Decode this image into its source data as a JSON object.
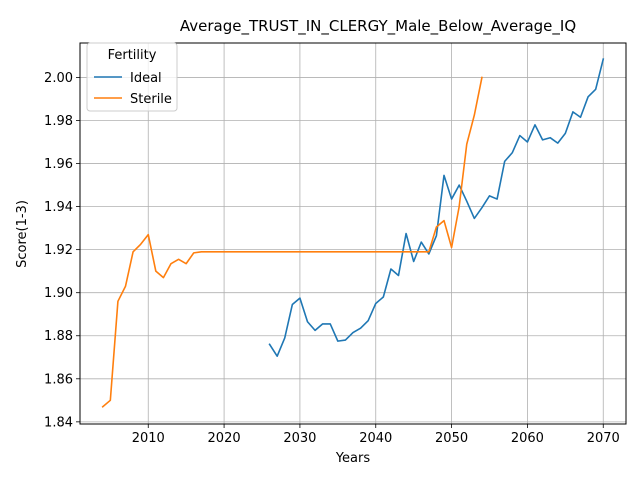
{
  "chart_data": {
    "type": "line",
    "title": "Average_TRUST_IN_CLERGY_Male_Below_Average_IQ",
    "xlabel": "Years",
    "ylabel": "Score(1-3)",
    "xlim": [
      2001,
      2073
    ],
    "ylim": [
      1.839,
      2.016
    ],
    "xticks": [
      2010,
      2020,
      2030,
      2040,
      2050,
      2060,
      2070
    ],
    "yticks": [
      1.84,
      1.86,
      1.88,
      1.9,
      1.92,
      1.94,
      1.96,
      1.98,
      2.0
    ],
    "ytick_labels": [
      "1.84",
      "1.86",
      "1.88",
      "1.90",
      "1.92",
      "1.94",
      "1.96",
      "1.98",
      "2.00"
    ],
    "grid": true,
    "legend": {
      "title": "Fertility",
      "position": "top-left"
    },
    "series": [
      {
        "name": "Ideal",
        "color": "#1f77b4",
        "x": [
          2026,
          2027,
          2028,
          2029,
          2030,
          2031,
          2032,
          2033,
          2034,
          2035,
          2036,
          2037,
          2038,
          2039,
          2040,
          2041,
          2042,
          2043,
          2044,
          2045,
          2046,
          2047,
          2048,
          2049,
          2050,
          2051,
          2052,
          2053,
          2054,
          2055,
          2056,
          2057,
          2058,
          2059,
          2060,
          2061,
          2062,
          2063,
          2064,
          2065,
          2066,
          2067,
          2068,
          2069,
          2070
        ],
        "y": [
          1.876,
          1.8705,
          1.879,
          1.8945,
          1.8975,
          1.8865,
          1.8825,
          1.8855,
          1.8855,
          1.8775,
          1.878,
          1.8815,
          1.8835,
          1.887,
          1.895,
          1.898,
          1.911,
          1.908,
          1.9275,
          1.9145,
          1.9235,
          1.918,
          1.9265,
          1.9545,
          1.9435,
          1.95,
          1.9425,
          1.9345,
          1.9395,
          1.945,
          1.9435,
          1.961,
          1.965,
          1.973,
          1.97,
          1.978,
          1.971,
          1.972,
          1.9695,
          1.974,
          1.984,
          1.9815,
          1.991,
          1.9945,
          2.0085
        ]
      },
      {
        "name": "Sterile",
        "color": "#ff7f0e",
        "x": [
          2004,
          2005,
          2006,
          2007,
          2008,
          2009,
          2010,
          2011,
          2012,
          2013,
          2014,
          2015,
          2016,
          2017,
          2018,
          2019,
          2020,
          2025,
          2030,
          2035,
          2040,
          2045,
          2046,
          2047,
          2048,
          2049,
          2050,
          2051,
          2052,
          2053,
          2054
        ],
        "y": [
          1.847,
          1.85,
          1.896,
          1.903,
          1.919,
          1.9225,
          1.927,
          1.91,
          1.907,
          1.9135,
          1.9155,
          1.9135,
          1.9185,
          1.919,
          1.919,
          1.919,
          1.919,
          1.919,
          1.919,
          1.919,
          1.919,
          1.919,
          1.919,
          1.919,
          1.9305,
          1.9335,
          1.921,
          1.94,
          1.969,
          1.9825,
          2.0
        ]
      }
    ]
  }
}
